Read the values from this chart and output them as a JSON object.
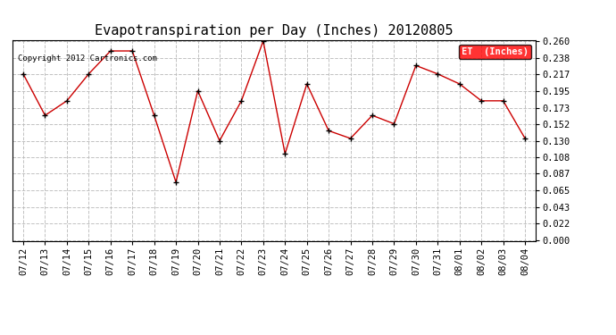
{
  "title": "Evapotranspiration per Day (Inches) 20120805",
  "copyright_text": "Copyright 2012 Cartronics.com",
  "legend_label": "ET  (Inches)",
  "x_labels": [
    "07/12",
    "07/13",
    "07/14",
    "07/15",
    "07/16",
    "07/17",
    "07/18",
    "07/19",
    "07/20",
    "07/21",
    "07/22",
    "07/23",
    "07/24",
    "07/25",
    "07/26",
    "07/27",
    "07/28",
    "07/29",
    "07/30",
    "07/31",
    "08/01",
    "08/02",
    "08/03",
    "08/04"
  ],
  "y_values": [
    0.217,
    0.163,
    0.182,
    0.217,
    0.247,
    0.247,
    0.163,
    0.076,
    0.195,
    0.13,
    0.182,
    0.26,
    0.113,
    0.204,
    0.143,
    0.133,
    0.163,
    0.152,
    0.228,
    0.217,
    0.204,
    0.182,
    0.182,
    0.133
  ],
  "y_min": 0.0,
  "y_max": 0.26,
  "y_ticks": [
    0.0,
    0.022,
    0.043,
    0.065,
    0.087,
    0.108,
    0.13,
    0.152,
    0.173,
    0.195,
    0.217,
    0.238,
    0.26
  ],
  "line_color": "#cc0000",
  "marker_color": "#000000",
  "background_color": "#ffffff",
  "grid_color": "#bbbbbb",
  "title_fontsize": 11,
  "tick_fontsize": 7.5,
  "legend_bg_color": "#ff0000",
  "legend_text_color": "#ffffff"
}
